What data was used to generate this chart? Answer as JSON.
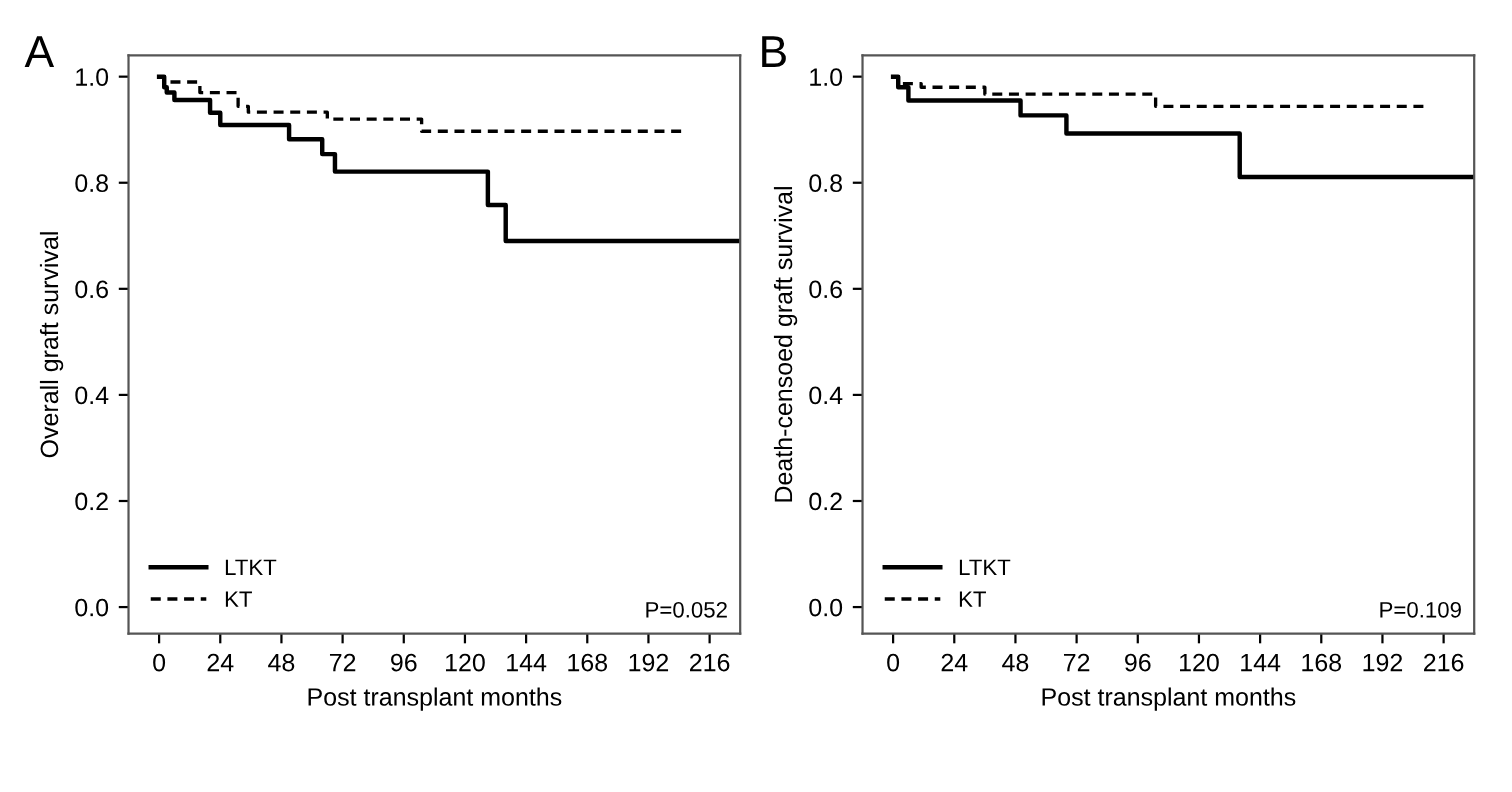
{
  "chart_data": [
    {
      "type": "step",
      "title": "A",
      "xlabel": "Post transplant months",
      "ylabel": "Overall graft survival",
      "xlim": [
        -12,
        228
      ],
      "ylim": [
        -0.05,
        1.04
      ],
      "xticks": [
        0,
        24,
        48,
        72,
        96,
        120,
        144,
        168,
        192,
        216
      ],
      "yticks": [
        {
          "value": 0,
          "label": "0.0"
        },
        {
          "value": 0.2,
          "label": "0.2"
        },
        {
          "value": 0.4,
          "label": "0.4"
        },
        {
          "value": 0.6,
          "label": "0.6"
        },
        {
          "value": 0.8,
          "label": "0.8"
        },
        {
          "value": 1,
          "label": "1.0"
        }
      ],
      "grid": false,
      "legend": "bottom left",
      "annotations": [
        "P=0.052"
      ],
      "series": [
        {
          "name": "LTKT",
          "color": "#000000",
          "line_style": "solid",
          "x": [
            0,
            2,
            3,
            6,
            20,
            24,
            51,
            64,
            69,
            129,
            136,
            228
          ],
          "values": [
            1.0,
            0.98,
            0.97,
            0.956,
            0.932,
            0.909,
            0.882,
            0.854,
            0.821,
            0.758,
            0.69,
            0.69
          ]
        },
        {
          "name": "KT",
          "color": "#000000",
          "line_style": "dashed",
          "x": [
            0,
            2,
            16,
            31,
            35,
            66,
            103,
            207
          ],
          "values": [
            1.0,
            0.99,
            0.97,
            0.944,
            0.933,
            0.92,
            0.897,
            0.897
          ]
        }
      ]
    },
    {
      "type": "step",
      "title": "B",
      "xlabel": "Post transplant months",
      "ylabel": "Death-censoed graft survival",
      "xlim": [
        -12,
        228
      ],
      "ylim": [
        -0.05,
        1.04
      ],
      "xticks": [
        0,
        24,
        48,
        72,
        96,
        120,
        144,
        168,
        192,
        216
      ],
      "yticks": [
        {
          "value": 0,
          "label": "0.0"
        },
        {
          "value": 0.2,
          "label": "0.2"
        },
        {
          "value": 0.4,
          "label": "0.4"
        },
        {
          "value": 0.6,
          "label": "0.6"
        },
        {
          "value": 0.8,
          "label": "0.8"
        },
        {
          "value": 1,
          "label": "1.0"
        }
      ],
      "grid": false,
      "legend": "bottom left",
      "annotations": [
        "P=0.109"
      ],
      "series": [
        {
          "name": "LTKT",
          "color": "#000000",
          "line_style": "solid",
          "x": [
            0,
            2,
            6,
            50,
            68,
            136,
            228
          ],
          "values": [
            1.0,
            0.98,
            0.955,
            0.927,
            0.893,
            0.811,
            0.811
          ]
        },
        {
          "name": "KT",
          "color": "#000000",
          "line_style": "dashed",
          "x": [
            0,
            2,
            11,
            36,
            103,
            209
          ],
          "values": [
            1.0,
            0.987,
            0.98,
            0.967,
            0.944,
            0.944
          ]
        }
      ]
    }
  ]
}
